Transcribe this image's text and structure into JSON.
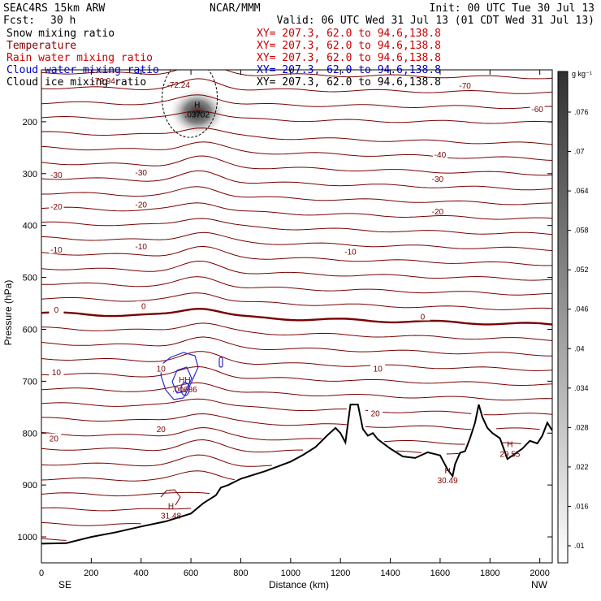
{
  "header": {
    "model": "SEAC4RS 15km ARW",
    "center": "NCAR/MMM",
    "init": "Init: 00 UTC Tue 30 Jul 13",
    "fcst_label": "Fcst:",
    "fcst_value": "30 h",
    "valid": "Valid: 06 UTC Wed 31 Jul 13 (01 CDT Wed 31 Jul 13)"
  },
  "legend": [
    {
      "label": "Snow mixing ratio",
      "xy": "XY= 207.3, 62.0 to  94.6,138.8",
      "color": "#000000"
    },
    {
      "label": "Temperature",
      "xy": "XY= 207.3, 62.0 to  94.6,138.8",
      "color": "#8b0000"
    },
    {
      "label": "Rain water mixing ratio",
      "xy": "XY= 207.3, 62.0 to  94.6,138.8",
      "color": "#cc0000"
    },
    {
      "label": "Cloud water mixing ratio",
      "xy": "XY= 207.3, 62.0 to  94.6,138.8",
      "color": "#0000cc"
    },
    {
      "label": "Cloud ice mixing ratio",
      "xy": "XY= 207.3, 62.0 to  94.6,138.8",
      "color": "#000000"
    }
  ],
  "colors": {
    "temperature": "#7a0000",
    "cloud_water": "#2a2ad0",
    "terrain": "#000000"
  },
  "chart_data": {
    "type": "cross-section contour",
    "xlabel": "Distance (km)",
    "ylabel": "Pressure (hPa)",
    "xlim": [
      0,
      2050
    ],
    "ylim": [
      1050,
      100
    ],
    "x_ticks": [
      0,
      200,
      400,
      600,
      800,
      1000,
      1200,
      1400,
      1600,
      1800,
      2000
    ],
    "y_ticks": [
      200,
      300,
      400,
      500,
      600,
      700,
      800,
      900,
      1000
    ],
    "x_end_labels": {
      "left": "SE",
      "right": "NW"
    },
    "colorbar": {
      "unit": "g kg⁻¹",
      "ticks": [
        ".01",
        ".016",
        ".022",
        ".028",
        ".034",
        ".04",
        ".046",
        ".052",
        ".058",
        ".064",
        ".07",
        ".076"
      ]
    },
    "temperature_contour_labels": [
      {
        "text": "-70",
        "x": 1700,
        "p": 130
      },
      {
        "text": "-60",
        "x": 1990,
        "p": 175
      },
      {
        "text": "-40",
        "x": 1600,
        "p": 263
      },
      {
        "text": "-30",
        "x": 60,
        "p": 302
      },
      {
        "text": "-30",
        "x": 400,
        "p": 297
      },
      {
        "text": "-30",
        "x": 1590,
        "p": 310
      },
      {
        "text": "-20",
        "x": 60,
        "p": 363
      },
      {
        "text": "-20",
        "x": 400,
        "p": 359
      },
      {
        "text": "-20",
        "x": 1590,
        "p": 372
      },
      {
        "text": "-10",
        "x": 60,
        "p": 446
      },
      {
        "text": "-10",
        "x": 400,
        "p": 440
      },
      {
        "text": "-10",
        "x": 1240,
        "p": 450
      },
      {
        "text": "0",
        "x": 60,
        "p": 562
      },
      {
        "text": "0",
        "x": 410,
        "p": 555
      },
      {
        "text": "0",
        "x": 1530,
        "p": 575
      },
      {
        "text": "10",
        "x": 60,
        "p": 682
      },
      {
        "text": "10",
        "x": 480,
        "p": 675
      },
      {
        "text": "10",
        "x": 1350,
        "p": 675
      },
      {
        "text": "20",
        "x": 50,
        "p": 810
      },
      {
        "text": "20",
        "x": 480,
        "p": 792
      },
      {
        "text": "20",
        "x": 1340,
        "p": 761
      }
    ],
    "maxima": [
      {
        "label": "H",
        "value": ".03702",
        "x": 625,
        "p": 182,
        "field": "snow"
      },
      {
        "label": "HH",
        "value": ".00686",
        "x": 575,
        "p": 712,
        "field": "cloud water"
      },
      {
        "label": "H",
        "value": "31.48",
        "x": 520,
        "p": 955,
        "field": "temperature"
      },
      {
        "label": "H",
        "value": "30.49",
        "x": 1630,
        "p": 887,
        "field": "temperature"
      },
      {
        "label": "H",
        "value": "29.55",
        "x": 1880,
        "p": 836,
        "field": "temperature"
      }
    ],
    "other_labels": [
      {
        "text": "-72.94",
        "x": 250,
        "p": 120
      },
      {
        "text": "-72.24",
        "x": 550,
        "p": 128
      }
    ],
    "terrain": [
      [
        0,
        1013
      ],
      [
        100,
        1012
      ],
      [
        200,
        1000
      ],
      [
        300,
        991
      ],
      [
        400,
        980
      ],
      [
        500,
        970
      ],
      [
        600,
        955
      ],
      [
        650,
        935
      ],
      [
        700,
        920
      ],
      [
        720,
        905
      ],
      [
        750,
        900
      ],
      [
        800,
        888
      ],
      [
        900,
        873
      ],
      [
        1000,
        855
      ],
      [
        1050,
        842
      ],
      [
        1100,
        827
      ],
      [
        1150,
        803
      ],
      [
        1180,
        790
      ],
      [
        1200,
        800
      ],
      [
        1220,
        818
      ],
      [
        1240,
        745
      ],
      [
        1270,
        745
      ],
      [
        1290,
        792
      ],
      [
        1310,
        805
      ],
      [
        1330,
        800
      ],
      [
        1350,
        812
      ],
      [
        1400,
        830
      ],
      [
        1450,
        845
      ],
      [
        1500,
        848
      ],
      [
        1550,
        837
      ],
      [
        1600,
        843
      ],
      [
        1630,
        870
      ],
      [
        1650,
        883
      ],
      [
        1660,
        860
      ],
      [
        1680,
        838
      ],
      [
        1700,
        835
      ],
      [
        1720,
        810
      ],
      [
        1740,
        780
      ],
      [
        1755,
        745
      ],
      [
        1770,
        770
      ],
      [
        1790,
        790
      ],
      [
        1810,
        800
      ],
      [
        1840,
        810
      ],
      [
        1870,
        850
      ],
      [
        1900,
        840
      ],
      [
        1930,
        830
      ],
      [
        1960,
        815
      ],
      [
        1990,
        820
      ],
      [
        2010,
        805
      ],
      [
        2030,
        780
      ],
      [
        2050,
        795
      ]
    ]
  }
}
